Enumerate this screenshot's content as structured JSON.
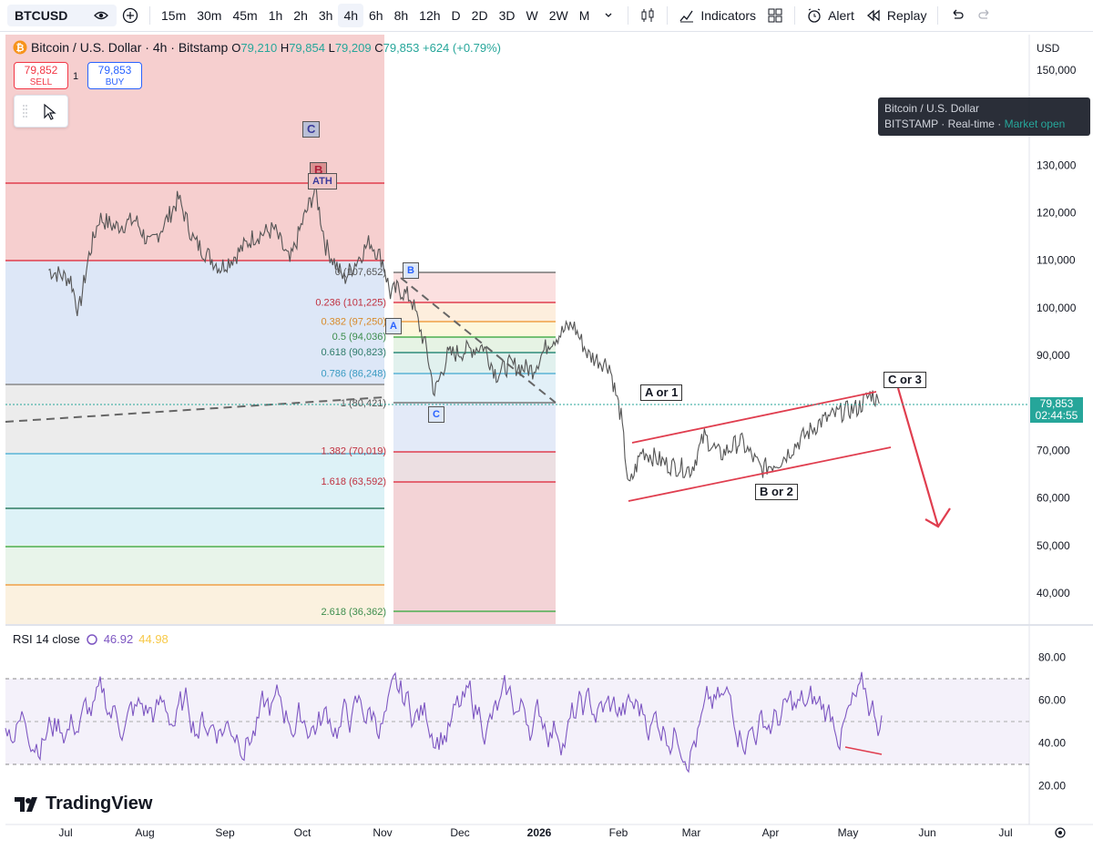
{
  "toolbar": {
    "symbol": "BTCUSD",
    "intervals": [
      "15m",
      "30m",
      "45m",
      "1h",
      "2h",
      "3h",
      "4h",
      "6h",
      "8h",
      "12h",
      "D",
      "2D",
      "3D",
      "W",
      "2W",
      "M"
    ],
    "active_interval": "4h",
    "indicators_label": "Indicators",
    "alert_label": "Alert",
    "replay_label": "Replay"
  },
  "legend": {
    "title": "Bitcoin / U.S. Dollar · 4h · Bitstamp",
    "o_label": "O",
    "o": "79,210",
    "h_label": "H",
    "h": "79,854",
    "l_label": "L",
    "l": "79,209",
    "c_label": "C",
    "c": "79,853",
    "change": "+624 (+0.79%)"
  },
  "trade": {
    "sell_price": "79,852",
    "sell_label": "SELL",
    "buy_price": "79,853",
    "buy_label": "BUY",
    "spread": "1"
  },
  "tooltip": {
    "line1": "Bitcoin / U.S. Dollar",
    "exchange": "BITSTAMP",
    "feed": "Real-time",
    "status": "Market open"
  },
  "price_tag": {
    "price": "79,853",
    "countdown": "02:44:55"
  },
  "currency": "USD",
  "chart_data": {
    "type": "line",
    "title": "Bitcoin / U.S. Dollar · 4h · Bitstamp",
    "y_ticks": [
      "150,000",
      "130,000",
      "120,000",
      "110,000",
      "100,000",
      "90,000",
      "80,000",
      "70,000",
      "60,000",
      "50,000",
      "40,000"
    ],
    "x_ticks": [
      "Jul",
      "Aug",
      "Sep",
      "Oct",
      "Nov",
      "Dec",
      "2026",
      "Feb",
      "Mar",
      "Apr",
      "May",
      "Jun",
      "Jul"
    ],
    "price_series": [
      [
        "Jun 25",
        108000
      ],
      [
        "Jul 3",
        106000
      ],
      [
        "Jul 6",
        99000
      ],
      [
        "Jul 10",
        111000
      ],
      [
        "Jul 14",
        119000
      ],
      [
        "Jul 20",
        117000
      ],
      [
        "Jul 28",
        118500
      ],
      [
        "Aug 3",
        113000
      ],
      [
        "Aug 10",
        119000
      ],
      [
        "Aug 14",
        123000
      ],
      [
        "Aug 20",
        114000
      ],
      [
        "Aug 30",
        108500
      ],
      [
        "Sep 5",
        111000
      ],
      [
        "Sep 12",
        115000
      ],
      [
        "Sep 20",
        116500
      ],
      [
        "Sep 26",
        109500
      ],
      [
        "Oct 1",
        118000
      ],
      [
        "Oct 6",
        125000
      ],
      [
        "Oct 10",
        113000
      ],
      [
        "Oct 17",
        106000
      ],
      [
        "Oct 27",
        114000
      ],
      [
        "Nov 1",
        110000
      ],
      [
        "Nov 4",
        103000
      ],
      [
        "Nov 7",
        104000
      ],
      [
        "Nov 12",
        102000
      ],
      [
        "Nov 18",
        91000
      ],
      [
        "Nov 21",
        82000
      ],
      [
        "Nov 26",
        90000
      ],
      [
        "Dec 3",
        91000
      ],
      [
        "Dec 10",
        92000
      ],
      [
        "Dec 15",
        86000
      ],
      [
        "Dec 20",
        88000
      ],
      [
        "Dec 29",
        87000
      ],
      [
        "Jan 5",
        93000
      ],
      [
        "Jan 14",
        96500
      ],
      [
        "Jan 20",
        90000
      ],
      [
        "Jan 28",
        88000
      ],
      [
        "Feb 2",
        77000
      ],
      [
        "Feb 5",
        62000
      ],
      [
        "Feb 10",
        70000
      ],
      [
        "Feb 20",
        67000
      ],
      [
        "Mar 1",
        66000
      ],
      [
        "Mar 6",
        73000
      ],
      [
        "Mar 12",
        69000
      ],
      [
        "Mar 20",
        72000
      ],
      [
        "Mar 28",
        66000
      ],
      [
        "Apr 5",
        68000
      ],
      [
        "Apr 12",
        72000
      ],
      [
        "Apr 20",
        76000
      ],
      [
        "Apr 28",
        78000
      ],
      [
        "May 5",
        79000
      ],
      [
        "May 10",
        82000
      ],
      [
        "May 13",
        79853
      ]
    ],
    "fib_levels": [
      {
        "label": "0 (107,652)",
        "value": 107652
      },
      {
        "label": "0.236 (101,225)",
        "value": 101225
      },
      {
        "label": "0.382 (97,250)",
        "value": 97250
      },
      {
        "label": "0.5 (94,036)",
        "value": 94036
      },
      {
        "label": "0.618 (90,823)",
        "value": 90823
      },
      {
        "label": "0.786 (86,248)",
        "value": 86248
      },
      {
        "label": "1 (80,421)",
        "value": 80421
      },
      {
        "label": "1.382 (70,019)",
        "value": 70019
      },
      {
        "label": "1.618 (63,592)",
        "value": 63592
      },
      {
        "label": "2.618 (36,362)",
        "value": 36362
      }
    ],
    "wave_labels": [
      "C",
      "B",
      "ATH",
      "B",
      "A",
      "C",
      "A or 1",
      "B or 2",
      "C or 3"
    ],
    "rsi": {
      "label": "RSI 14 close",
      "value": "46.92",
      "ma_value": "44.98",
      "y_ticks": [
        "80.00",
        "60.00",
        "40.00",
        "20.00"
      ],
      "upper_band": 70,
      "lower_band": 30
    }
  },
  "branding": "TradingView",
  "colors": {
    "up": "#26a69a",
    "down": "#f23645",
    "accent": "#2962ff",
    "rsi_line": "#7e57c2",
    "rsi_ma": "#f7c948"
  }
}
